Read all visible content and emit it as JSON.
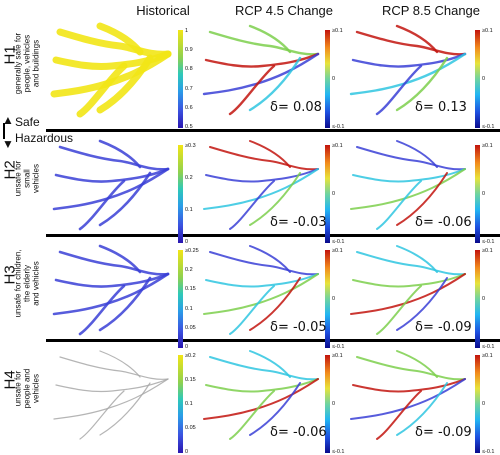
{
  "columns": {
    "historical": "Historical",
    "rcp45": "RCP 4.5 Change",
    "rcp85": "RCP 8.5 Change"
  },
  "divider": {
    "safe": "Safe",
    "hazardous": "Hazardous"
  },
  "rows": [
    {
      "id": "H1",
      "label": "H1",
      "desc": [
        "generally safe for",
        "people, vehicles",
        "and buildings"
      ],
      "hist_ticks": [
        "1",
        "0.9",
        "0.8",
        "0.7",
        "0.6",
        "0.5"
      ],
      "change_ticks": [
        "≥0.1",
        "0",
        "≤-0.1"
      ],
      "delta45": "δ= 0.08",
      "delta85": "δ= 0.13",
      "tone": "yellow"
    },
    {
      "id": "H2",
      "label": "H2",
      "desc": [
        "unsafe for",
        "small",
        "vehicles"
      ],
      "hist_ticks": [
        "≥0.3",
        "0.2",
        "0.1",
        "0"
      ],
      "change_ticks": [
        "≥0.1",
        "0",
        "≤-0.1"
      ],
      "delta45": "δ= -0.03",
      "delta85": "δ= -0.06",
      "tone": "blue"
    },
    {
      "id": "H3",
      "label": "H3",
      "desc": [
        "unsafe for children,",
        "the elderly",
        "and vehicles"
      ],
      "hist_ticks": [
        "≥0.25",
        "0.2",
        "0.15",
        "0.1",
        "0.05",
        "0"
      ],
      "change_ticks": [
        "≥0.1",
        "0",
        "≤-0.1"
      ],
      "delta45": "δ= -0.05",
      "delta85": "δ= -0.09",
      "tone": "blue"
    },
    {
      "id": "H4",
      "label": "H4",
      "desc": [
        "unsafe for",
        "people and",
        "vehicles"
      ],
      "hist_ticks": [
        "≥0.2",
        "0.15",
        "0.1",
        "0.05",
        "0"
      ],
      "change_ticks": [
        "≥0.1",
        "0",
        "≤-0.1"
      ],
      "delta45": "δ= -0.06",
      "delta85": "δ= -0.09",
      "tone": "faint"
    }
  ],
  "colors": {
    "yellow": "#f2e516",
    "blue": "#3a3fd6",
    "cyan": "#2fc6e0",
    "green": "#7ccf4c",
    "red": "#c2140e",
    "gray": "#a8a8a8"
  }
}
